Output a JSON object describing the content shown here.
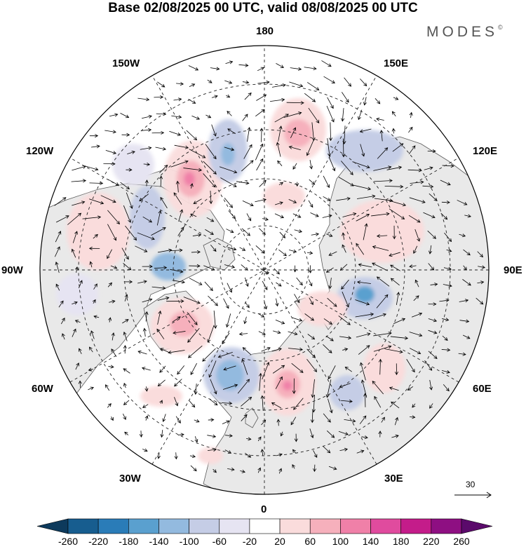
{
  "title": "Base 02/08/2025 00 UTC, valid 08/08/2025 00 UTC",
  "brand": "MODES",
  "brand_mark": "©",
  "longitude_labels": [
    "180",
    "150E",
    "120E",
    "90E",
    "60E",
    "30E",
    "0",
    "30W",
    "60W",
    "90W",
    "120W",
    "150W"
  ],
  "reference_vector": {
    "label": "30",
    "magnitude": 30
  },
  "colorbar": {
    "labels": [
      "-260",
      "-220",
      "-180",
      "-140",
      "-100",
      "-60",
      "-20",
      "20",
      "60",
      "100",
      "140",
      "180",
      "220",
      "260"
    ],
    "colors": [
      "#0d3a5c",
      "#175d8f",
      "#2a7cb8",
      "#5aa0cf",
      "#93badf",
      "#c5cde6",
      "#e6e4f2",
      "#ffffff",
      "#fadcdc",
      "#f6b0bc",
      "#f080a8",
      "#e04b9e",
      "#c41c8a",
      "#8e0f82",
      "#5b0a6b"
    ]
  },
  "colors": {
    "land": "#e9e9e9",
    "coast": "#5a5a5a",
    "grid": "#222222",
    "arrow": "#000000"
  }
}
